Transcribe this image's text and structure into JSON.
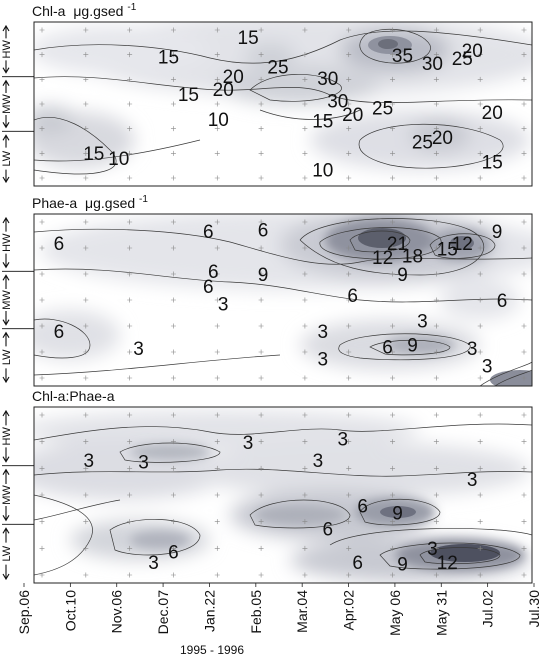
{
  "chart_data": [
    {
      "type": "contour",
      "title": "Chl-a",
      "title_unit": "μg.gsed",
      "title_superscript": "-1",
      "y_zones": [
        "HW",
        "MW",
        "LW"
      ],
      "x_categories": [
        "Sep.06",
        "Oct.10",
        "Nov.06",
        "Dec.07",
        "Jan.22",
        "Feb.05",
        "Mar.04",
        "Apr.02",
        "May 06",
        "May 31",
        "Jul.02",
        "Jul.30"
      ],
      "contour_labels": [
        {
          "text": "15",
          "x": 0.43,
          "y": 0.09
        },
        {
          "text": "15",
          "x": 0.27,
          "y": 0.21
        },
        {
          "text": "25",
          "x": 0.49,
          "y": 0.27
        },
        {
          "text": "20",
          "x": 0.4,
          "y": 0.33
        },
        {
          "text": "30",
          "x": 0.59,
          "y": 0.34
        },
        {
          "text": "35",
          "x": 0.74,
          "y": 0.2
        },
        {
          "text": "30",
          "x": 0.8,
          "y": 0.25
        },
        {
          "text": "20",
          "x": 0.88,
          "y": 0.17
        },
        {
          "text": "25",
          "x": 0.86,
          "y": 0.22
        },
        {
          "text": "15",
          "x": 0.31,
          "y": 0.44
        },
        {
          "text": "20",
          "x": 0.38,
          "y": 0.41
        },
        {
          "text": "30",
          "x": 0.61,
          "y": 0.48
        },
        {
          "text": "25",
          "x": 0.7,
          "y": 0.52
        },
        {
          "text": "20",
          "x": 0.64,
          "y": 0.56
        },
        {
          "text": "10",
          "x": 0.37,
          "y": 0.59
        },
        {
          "text": "15",
          "x": 0.58,
          "y": 0.6
        },
        {
          "text": "20",
          "x": 0.92,
          "y": 0.55
        },
        {
          "text": "20",
          "x": 0.82,
          "y": 0.7
        },
        {
          "text": "25",
          "x": 0.78,
          "y": 0.73
        },
        {
          "text": "15",
          "x": 0.12,
          "y": 0.8
        },
        {
          "text": "10",
          "x": 0.17,
          "y": 0.83
        },
        {
          "text": "10",
          "x": 0.58,
          "y": 0.9
        },
        {
          "text": "15",
          "x": 0.92,
          "y": 0.85
        }
      ]
    },
    {
      "type": "contour",
      "title": "Phae-a",
      "title_unit": "μg.gsed",
      "title_superscript": "-1",
      "y_zones": [
        "HW",
        "MW",
        "LW"
      ],
      "x_categories": [
        "Sep.06",
        "Oct.10",
        "Nov.06",
        "Dec.07",
        "Jan.22",
        "Feb.05",
        "Mar.04",
        "Apr.02",
        "May 06",
        "May 31",
        "Jul.02",
        "Jul.30"
      ],
      "contour_labels": [
        {
          "text": "6",
          "x": 0.05,
          "y": 0.17
        },
        {
          "text": "6",
          "x": 0.35,
          "y": 0.1
        },
        {
          "text": "6",
          "x": 0.46,
          "y": 0.09
        },
        {
          "text": "21",
          "x": 0.73,
          "y": 0.17
        },
        {
          "text": "12",
          "x": 0.7,
          "y": 0.25
        },
        {
          "text": "18",
          "x": 0.76,
          "y": 0.24
        },
        {
          "text": "15",
          "x": 0.83,
          "y": 0.2
        },
        {
          "text": "12",
          "x": 0.86,
          "y": 0.17
        },
        {
          "text": "9",
          "x": 0.93,
          "y": 0.1
        },
        {
          "text": "6",
          "x": 0.36,
          "y": 0.33
        },
        {
          "text": "9",
          "x": 0.46,
          "y": 0.35
        },
        {
          "text": "6",
          "x": 0.35,
          "y": 0.42
        },
        {
          "text": "3",
          "x": 0.38,
          "y": 0.52
        },
        {
          "text": "9",
          "x": 0.74,
          "y": 0.35
        },
        {
          "text": "6",
          "x": 0.64,
          "y": 0.47
        },
        {
          "text": "3",
          "x": 0.78,
          "y": 0.62
        },
        {
          "text": "6",
          "x": 0.94,
          "y": 0.5
        },
        {
          "text": "6",
          "x": 0.05,
          "y": 0.68
        },
        {
          "text": "3",
          "x": 0.21,
          "y": 0.78
        },
        {
          "text": "3",
          "x": 0.58,
          "y": 0.68
        },
        {
          "text": "6",
          "x": 0.71,
          "y": 0.77
        },
        {
          "text": "9",
          "x": 0.76,
          "y": 0.76
        },
        {
          "text": "3",
          "x": 0.58,
          "y": 0.84
        },
        {
          "text": "3",
          "x": 0.88,
          "y": 0.78
        },
        {
          "text": "3",
          "x": 0.91,
          "y": 0.88
        }
      ]
    },
    {
      "type": "contour",
      "title": "Chl-a:Phae-a",
      "y_zones": [
        "HW",
        "MW",
        "LW"
      ],
      "x_categories": [
        "Sep.06",
        "Oct.10",
        "Nov.06",
        "Dec.07",
        "Jan.22",
        "Feb.05",
        "Mar.04",
        "Apr.02",
        "May 06",
        "May 31",
        "Jul.02",
        "Jul.30"
      ],
      "contour_labels": [
        {
          "text": "3",
          "x": 0.11,
          "y": 0.3
        },
        {
          "text": "3",
          "x": 0.22,
          "y": 0.31
        },
        {
          "text": "3",
          "x": 0.43,
          "y": 0.2
        },
        {
          "text": "3",
          "x": 0.62,
          "y": 0.18
        },
        {
          "text": "3",
          "x": 0.57,
          "y": 0.3
        },
        {
          "text": "3",
          "x": 0.88,
          "y": 0.41
        },
        {
          "text": "6",
          "x": 0.66,
          "y": 0.56
        },
        {
          "text": "9",
          "x": 0.73,
          "y": 0.6
        },
        {
          "text": "6",
          "x": 0.59,
          "y": 0.69
        },
        {
          "text": "6",
          "x": 0.28,
          "y": 0.82
        },
        {
          "text": "3",
          "x": 0.24,
          "y": 0.88
        },
        {
          "text": "3",
          "x": 0.8,
          "y": 0.8
        },
        {
          "text": "6",
          "x": 0.65,
          "y": 0.88
        },
        {
          "text": "9",
          "x": 0.74,
          "y": 0.89
        },
        {
          "text": "12",
          "x": 0.83,
          "y": 0.88
        }
      ]
    }
  ],
  "x_axis": {
    "tick_labels": [
      "Sep.06",
      "Oct.10",
      "Nov.06",
      "Dec.07",
      "Jan.22",
      "Feb.05",
      "Mar.04",
      "Apr.02",
      "May 06",
      "May 31",
      "Jul.02",
      "Jul.30"
    ],
    "period_label": "1995 - 1996"
  },
  "colors": {
    "background": "#ffffff",
    "shade_light": "#e6e7ec",
    "shade_mid": "#c3c5ce",
    "shade_dark": "#8d909d",
    "shade_darkest": "#5a5d6a",
    "line": "#3a3a3a"
  }
}
